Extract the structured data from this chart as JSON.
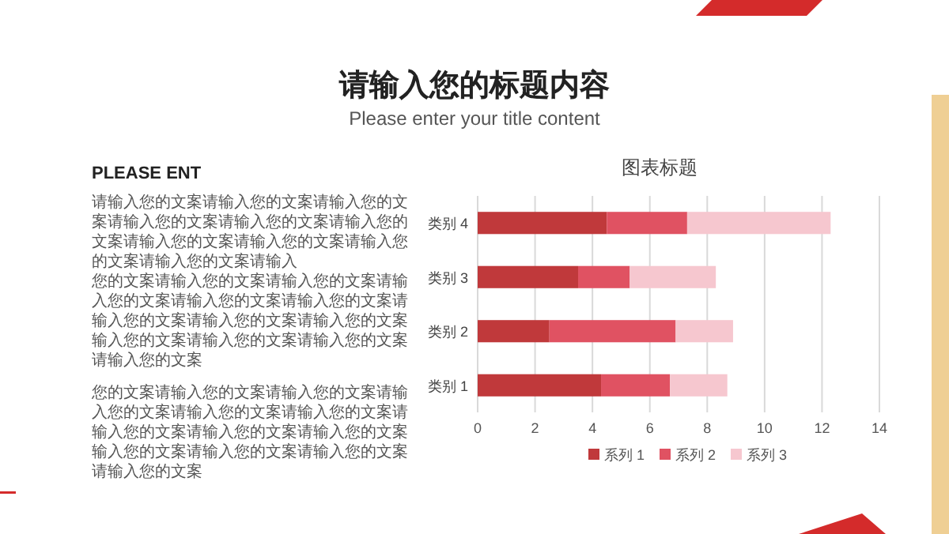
{
  "chart_data": [
    {
      "type": "other",
      "title": "请输入您的标题内容",
      "subtitle": "Please enter your title content",
      "annotations": [
        "PLEASE ENT",
        "请输入您的文案请输入您的文案请输入您的文案请输入您的文案请输入您的文案请输入您的文案请输入您的文案请输入您的文案请输入您的文案请输入您的文案请输入",
        "您的文案请输入您的文案请输入您的文案请输入您的文案请输入您的文案请输入您的文案请输入您的文案请输入您的文案请输入您的文案输入您的文案请输入您的文案请输入您的文案请输入您的文案",
        "您的文案请输入您的文案请输入您的文案请输入您的文案请输入您的文案请输入您的文案请输入您的文案请输入您的文案请输入您的文案输入您的文案请输入您的文案请输入您的文案请输入您的文案"
      ]
    },
    {
      "type": "bar",
      "orientation": "horizontal",
      "stacked": true,
      "title": "图表标题",
      "categories": [
        "类别 4",
        "类别 3",
        "类别 2",
        "类别 1"
      ],
      "series": [
        {
          "name": "系列 1",
          "color": "#c0393b",
          "values": [
            4.5,
            3.5,
            2.5,
            4.3
          ]
        },
        {
          "name": "系列 2",
          "color": "#e05262",
          "values": [
            2.8,
            1.8,
            4.4,
            2.4
          ]
        },
        {
          "name": "系列 3",
          "color": "#f6c7cf",
          "values": [
            5,
            3,
            2,
            2
          ]
        }
      ],
      "xlim": [
        0,
        14
      ],
      "xticks": [
        0,
        2,
        4,
        6,
        8,
        10,
        12,
        14
      ],
      "grid": "x",
      "legend": "bottom"
    }
  ]
}
